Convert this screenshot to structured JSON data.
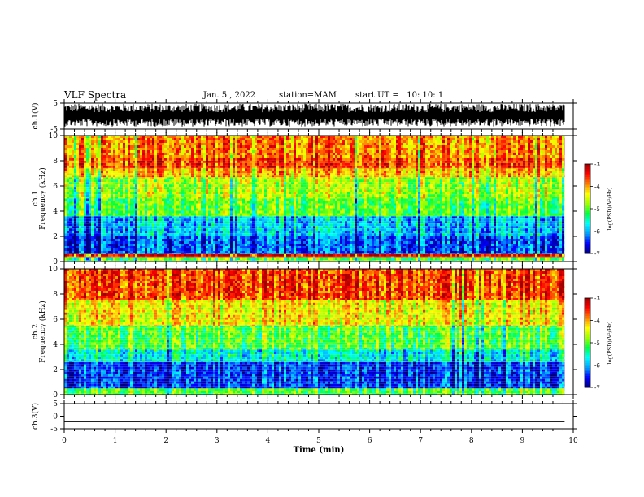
{
  "header": {
    "title": "VLF Spectra",
    "date": "Jan. 5 , 2022",
    "station": "station=MAM",
    "start": "start UT =   10: 10: 1"
  },
  "chart_data": [
    {
      "type": "line",
      "panel": "ch1-waveform",
      "ylabel": "ch.1(V)",
      "ylim": [
        -5,
        5
      ],
      "yticks": [
        "5",
        "-5"
      ],
      "description_values": "dense black waveform saturating roughly between -3 and 4 V over the full record"
    },
    {
      "type": "heatmap",
      "panel": "ch1-spectrogram",
      "ylabel": "ch.1\nFrequency (kHz)",
      "ylim": [
        0,
        10
      ],
      "yticks": [
        "0",
        "2",
        "4",
        "6",
        "8",
        "10"
      ],
      "colorbar": {
        "label": "log(PSD)(V²/Hz)",
        "ticks": [
          "-3",
          "-4",
          "-5",
          "-6",
          "-7"
        ],
        "range": [
          -7,
          -3
        ]
      },
      "bands_khz": [
        {
          "from": 0.0,
          "to": 0.3,
          "level": -5.0
        },
        {
          "from": 0.3,
          "to": 0.6,
          "level": -3.3
        },
        {
          "from": 0.6,
          "to": 2.0,
          "level": -6.3
        },
        {
          "from": 2.0,
          "to": 3.6,
          "level": -5.9
        },
        {
          "from": 3.6,
          "to": 5.0,
          "level": -5.0
        },
        {
          "from": 5.0,
          "to": 6.7,
          "level": -4.7
        },
        {
          "from": 6.7,
          "to": 7.4,
          "level": -4.1
        },
        {
          "from": 7.4,
          "to": 8.2,
          "level": -3.6
        },
        {
          "from": 8.2,
          "to": 10.0,
          "level": -3.9
        }
      ]
    },
    {
      "type": "heatmap",
      "panel": "ch2-spectrogram",
      "ylabel": "ch.2\nFrequency (kHz)",
      "ylim": [
        0,
        10
      ],
      "yticks": [
        "0",
        "2",
        "4",
        "6",
        "8",
        "10"
      ],
      "colorbar": {
        "label": "log(PSD)(V²/Hz)",
        "ticks": [
          "-3",
          "-4",
          "-5",
          "-6",
          "-7"
        ],
        "range": [
          -7,
          -3
        ]
      },
      "bands_khz": [
        {
          "from": 0.0,
          "to": 0.5,
          "level": -5.0
        },
        {
          "from": 0.5,
          "to": 2.6,
          "level": -6.4
        },
        {
          "from": 2.6,
          "to": 3.6,
          "level": -5.6
        },
        {
          "from": 3.6,
          "to": 5.5,
          "level": -5.0
        },
        {
          "from": 5.5,
          "to": 7.5,
          "level": -4.3
        },
        {
          "from": 7.5,
          "to": 10.0,
          "level": -3.6
        }
      ]
    },
    {
      "type": "line",
      "panel": "ch3-waveform",
      "ylabel": "ch.3(V)",
      "ylim": [
        -5,
        5
      ],
      "yticks": [
        "5",
        "0",
        "-5"
      ],
      "x": [
        0,
        9.83
      ],
      "y": [
        -2.2,
        -2.2
      ]
    }
  ],
  "xaxis": {
    "label": "Time (min)",
    "ticks": [
      "0",
      "1",
      "2",
      "3",
      "4",
      "5",
      "6",
      "7",
      "8",
      "9",
      "10"
    ],
    "range": [
      0,
      10
    ],
    "data_end": 9.83
  },
  "colors": {
    "colormap": [
      "#000080",
      "#0000ff",
      "#00a0ff",
      "#00ffff",
      "#00ff40",
      "#a0ff00",
      "#ffff00",
      "#ff8000",
      "#ff0000",
      "#a00000"
    ],
    "axis": "#000000",
    "background": "#ffffff"
  }
}
